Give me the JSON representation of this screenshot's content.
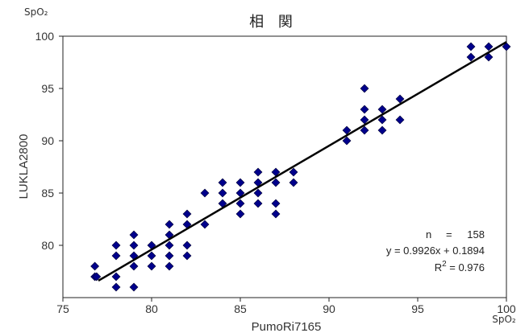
{
  "chart_data": {
    "type": "scatter",
    "title": "相 関",
    "xlabel": "PumoRi7165",
    "ylabel": "LUKLA2800",
    "x_unit": "SpO₂",
    "y_unit": "SpO₂",
    "xlim": [
      75,
      100
    ],
    "ylim": [
      75,
      100
    ],
    "x_ticks": [
      "75",
      "80",
      "85",
      "90",
      "95",
      "100"
    ],
    "y_ticks": [
      "80",
      "85",
      "90",
      "95",
      "100"
    ],
    "grid": false,
    "marker_color": "#00008b",
    "line_color": "#000000",
    "points": [
      [
        76.8,
        78
      ],
      [
        76.8,
        77
      ],
      [
        76.9,
        77
      ],
      [
        78,
        80
      ],
      [
        78,
        79
      ],
      [
        78,
        77
      ],
      [
        78,
        76
      ],
      [
        79,
        81
      ],
      [
        79,
        80
      ],
      [
        79,
        79
      ],
      [
        79,
        78
      ],
      [
        79,
        76
      ],
      [
        80,
        80
      ],
      [
        80,
        79
      ],
      [
        80,
        78
      ],
      [
        81,
        82
      ],
      [
        81,
        81
      ],
      [
        81,
        80
      ],
      [
        81,
        79
      ],
      [
        81,
        78
      ],
      [
        82,
        83
      ],
      [
        82,
        82
      ],
      [
        82,
        80
      ],
      [
        82,
        79
      ],
      [
        83,
        85
      ],
      [
        83,
        82
      ],
      [
        84,
        86
      ],
      [
        84,
        85
      ],
      [
        84,
        84
      ],
      [
        85,
        86
      ],
      [
        85,
        85
      ],
      [
        85,
        84
      ],
      [
        85,
        83
      ],
      [
        86,
        87
      ],
      [
        86,
        86
      ],
      [
        86,
        85
      ],
      [
        86,
        84
      ],
      [
        87,
        87
      ],
      [
        87,
        86
      ],
      [
        87,
        84
      ],
      [
        87,
        83
      ],
      [
        88,
        87
      ],
      [
        88,
        86
      ],
      [
        91,
        91
      ],
      [
        91,
        90
      ],
      [
        92,
        95
      ],
      [
        92,
        93
      ],
      [
        92,
        92
      ],
      [
        92,
        91
      ],
      [
        93,
        93
      ],
      [
        93,
        92
      ],
      [
        93,
        91
      ],
      [
        94,
        94
      ],
      [
        94,
        92
      ],
      [
        98,
        99
      ],
      [
        98,
        98
      ],
      [
        99,
        99
      ],
      [
        99,
        98
      ],
      [
        100,
        99
      ]
    ],
    "regression": {
      "slope": 0.9926,
      "intercept": 0.1894,
      "x_range": [
        77,
        100
      ]
    },
    "annotations": {
      "n_label": "n",
      "n_eq": "=",
      "n_value": "158",
      "equation": "y = 0.9926x + 0.1894",
      "r2_base": "R",
      "r2_exp": "2",
      "r2_value": " = 0.976"
    }
  }
}
